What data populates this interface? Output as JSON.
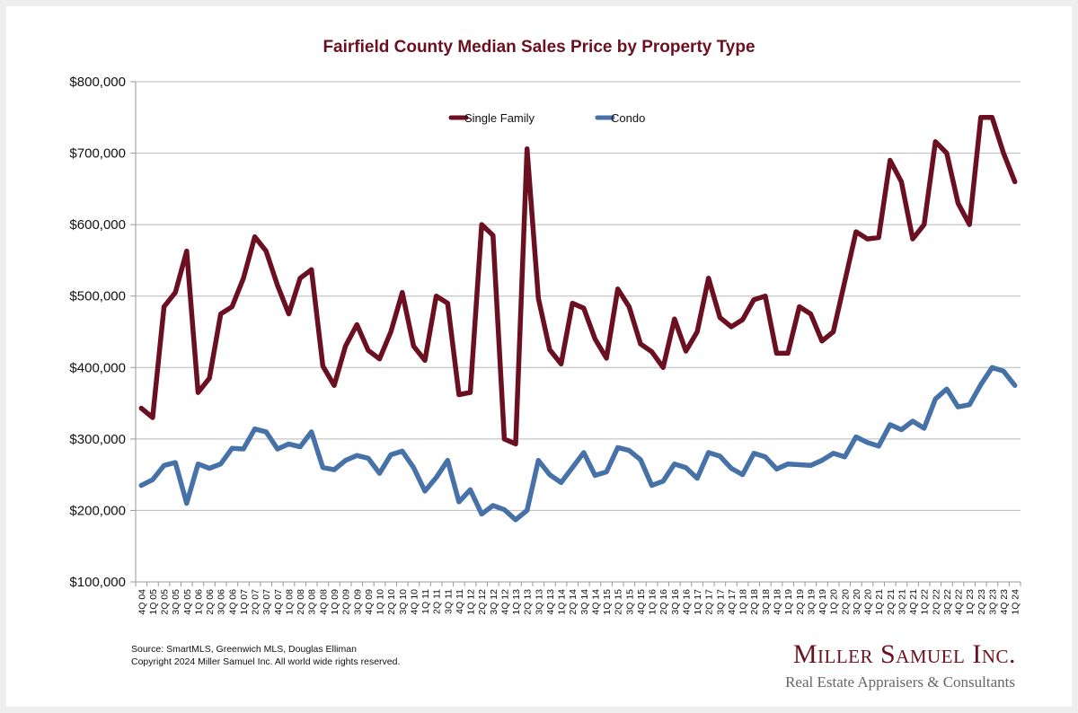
{
  "chart_data": {
    "type": "line",
    "title": "Fairfield County Median Sales Price by Property Type",
    "xlabel": "",
    "ylabel": "",
    "ylim": [
      100000,
      800000
    ],
    "yticks": [
      100000,
      200000,
      300000,
      400000,
      500000,
      600000,
      700000,
      800000
    ],
    "ytick_labels": [
      "$100,000",
      "$200,000",
      "$300,000",
      "$400,000",
      "$500,000",
      "$600,000",
      "$700,000",
      "$800,000"
    ],
    "grid": true,
    "legend_position": "top-center",
    "categories": [
      "4Q 04",
      "1Q 05",
      "2Q 05",
      "3Q 05",
      "4Q 05",
      "1Q 06",
      "2Q 06",
      "3Q 06",
      "4Q 06",
      "1Q 07",
      "2Q 07",
      "3Q 07",
      "4Q 07",
      "1Q 08",
      "2Q 08",
      "3Q 08",
      "4Q 08",
      "1Q 09",
      "2Q 09",
      "3Q 09",
      "4Q 09",
      "1Q 10",
      "2Q 10",
      "3Q 10",
      "4Q 10",
      "1Q 11",
      "2Q 11",
      "3Q 11",
      "4Q 11",
      "1Q 12",
      "2Q 12",
      "3Q 12",
      "4Q 12",
      "1Q 13",
      "2Q 13",
      "3Q 13",
      "4Q 13",
      "1Q 14",
      "2Q 14",
      "3Q 14",
      "4Q 14",
      "1Q 15",
      "2Q 15",
      "3Q 15",
      "4Q 15",
      "1Q 16",
      "2Q 16",
      "3Q 16",
      "4Q 16",
      "1Q 17",
      "2Q 17",
      "3Q 17",
      "4Q 17",
      "1Q 18",
      "2Q 18",
      "3Q 18",
      "4Q 18",
      "1Q 19",
      "2Q 19",
      "3Q 19",
      "4Q 19",
      "1Q 20",
      "2Q 20",
      "3Q 20",
      "4Q 20",
      "1Q 21",
      "2Q 21",
      "3Q 21",
      "4Q 21",
      "1Q 22",
      "2Q 22",
      "3Q 22",
      "4Q 22",
      "1Q 23",
      "2Q 23",
      "3Q 23",
      "4Q 23",
      "1Q 24"
    ],
    "series": [
      {
        "name": "Single Family",
        "color": "#6b1020",
        "values": [
          343000,
          330000,
          485000,
          505000,
          563000,
          365000,
          385000,
          475000,
          485000,
          525000,
          583000,
          563000,
          515000,
          475000,
          525000,
          537000,
          402000,
          375000,
          430000,
          460000,
          424000,
          412000,
          450000,
          505000,
          430000,
          410000,
          500000,
          490000,
          362000,
          365000,
          600000,
          585000,
          300000,
          293000,
          706000,
          497000,
          425000,
          405000,
          490000,
          483000,
          440000,
          413000,
          510000,
          485000,
          433000,
          422000,
          400000,
          468000,
          423000,
          450000,
          525000,
          470000,
          457000,
          467000,
          495000,
          500000,
          420000,
          420000,
          485000,
          475000,
          437000,
          450000,
          520000,
          590000,
          580000,
          582000,
          690000,
          660000,
          580000,
          600000,
          716000,
          700000,
          630000,
          600000,
          750000,
          750000,
          700000,
          660000
        ]
      },
      {
        "name": "Condo",
        "color": "#4672a8",
        "values": [
          235000,
          243000,
          263000,
          267000,
          210000,
          265000,
          259000,
          265000,
          287000,
          286000,
          314000,
          310000,
          286000,
          293000,
          289000,
          310000,
          260000,
          257000,
          270000,
          277000,
          273000,
          252000,
          278000,
          283000,
          260000,
          227000,
          246000,
          270000,
          212000,
          229000,
          195000,
          207000,
          201000,
          187000,
          200000,
          270000,
          250000,
          239000,
          260000,
          281000,
          249000,
          254000,
          288000,
          284000,
          271000,
          235000,
          241000,
          265000,
          260000,
          245000,
          281000,
          276000,
          259000,
          250000,
          280000,
          275000,
          258000,
          265000,
          264000,
          263000,
          270000,
          280000,
          275000,
          303000,
          295000,
          290000,
          320000,
          313000,
          325000,
          315000,
          356000,
          370000,
          345000,
          348000,
          376000,
          400000,
          395000,
          375000
        ]
      }
    ]
  },
  "footer": {
    "source": "Source: SmartMLS, Greenwich MLS, Douglas Elliman",
    "copyright": "Copyright 2024 Miller Samuel Inc.  All world wide rights reserved."
  },
  "logo": {
    "name": "Miller Samuel Inc.",
    "tagline": "Real Estate Appraisers & Consultants"
  }
}
